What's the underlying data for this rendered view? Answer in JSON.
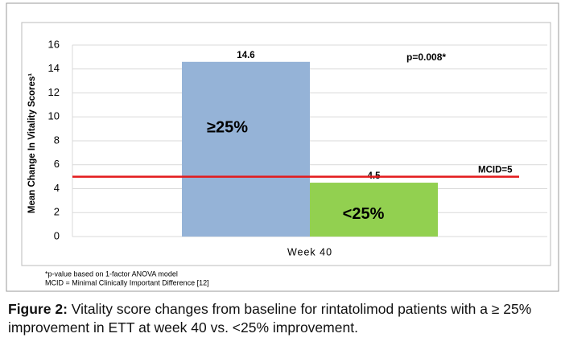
{
  "chart_data": {
    "type": "bar",
    "y_label": "Mean Change In Vitality Scores¹",
    "categories": [
      "Week 40"
    ],
    "series": [
      {
        "name": "≥25%",
        "color": "#95b3d7",
        "values": [
          14.6
        ]
      },
      {
        "name": "<25%",
        "color": "#92d050",
        "values": [
          4.5
        ]
      }
    ],
    "ylim": [
      0,
      16
    ],
    "yticks": [
      0,
      2,
      4,
      6,
      8,
      10,
      12,
      14,
      16
    ],
    "grid": true,
    "reference_line": {
      "value": 5,
      "label": "MCID=5",
      "color": "#e31a1c"
    },
    "annotation": "p=0.008*",
    "footnotes": [
      "*p-value based on 1-factor ANOVA model",
      "MCID = Minimal Clinically Important Difference [12]"
    ]
  },
  "caption": {
    "label": "Figure 2:",
    "text": "Vitality score changes from baseline for rintatolimod patients with a ≥ 25% improvement in ETT at week 40 vs. <25% improvement."
  }
}
